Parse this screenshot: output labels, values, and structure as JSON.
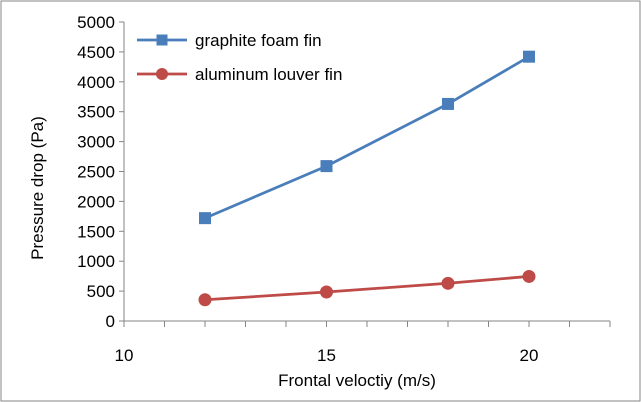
{
  "chart_data": {
    "type": "line",
    "xlabel": "Frontal veloctiy (m/s)",
    "ylabel": "Pressure drop (Pa)",
    "xlim": [
      10,
      22
    ],
    "ylim": [
      0,
      5000
    ],
    "x_ticks": [
      10,
      15,
      20
    ],
    "y_ticks": [
      0,
      500,
      1000,
      1500,
      2000,
      2500,
      3000,
      3500,
      4000,
      4500,
      5000
    ],
    "x_minor_step": 1,
    "grid": false,
    "legend_position": "top-left",
    "series": [
      {
        "name": "graphite foam fin",
        "color": "#4a7ebb",
        "marker": "square",
        "x": [
          12,
          15,
          18,
          20
        ],
        "y": [
          1720,
          2590,
          3630,
          4420
        ]
      },
      {
        "name": "aluminum louver fin",
        "color": "#be4b48",
        "marker": "circle",
        "x": [
          12,
          15,
          18,
          20
        ],
        "y": [
          355,
          485,
          630,
          745
        ]
      }
    ]
  }
}
